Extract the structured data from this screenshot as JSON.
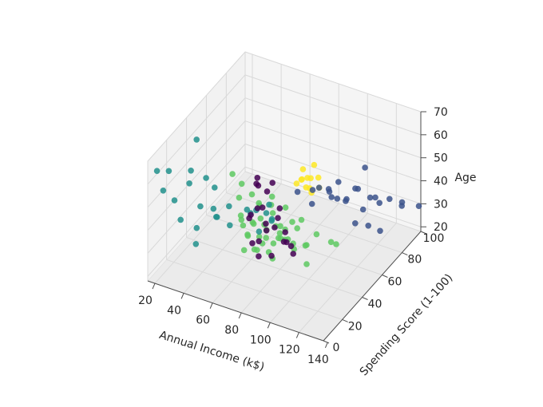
{
  "chart_data": {
    "type": "scatter",
    "projection": "3d",
    "xlabel": "Annual Income (k$)",
    "ylabel": "Spending Score (1-100)",
    "zlabel": "Age",
    "x_ticks": [
      "20",
      "40",
      "60",
      "80",
      "100",
      "120",
      "140"
    ],
    "y_ticks": [
      "0",
      "20",
      "40",
      "60",
      "80",
      "100"
    ],
    "z_ticks": [
      "20",
      "30",
      "40",
      "50",
      "60",
      "70"
    ],
    "xlim": [
      15,
      137
    ],
    "ylim": [
      1,
      99
    ],
    "zlim": [
      18,
      70
    ],
    "grid": true,
    "colors": {
      "cluster_purple": "#440154",
      "cluster_slate": "#3b528b",
      "cluster_teal": "#21918c",
      "cluster_green": "#5ec962",
      "cluster_yellow": "#fde725",
      "pane": "#f2f2f2",
      "grid": "#d9d9d9"
    },
    "clusters": [
      {
        "color": "#440154",
        "points": [
          [
            78,
            20,
            67
          ],
          [
            80,
            18,
            65
          ],
          [
            76,
            22,
            63
          ],
          [
            82,
            24,
            60
          ],
          [
            85,
            15,
            58
          ],
          [
            79,
            12,
            55
          ],
          [
            88,
            28,
            52
          ],
          [
            74,
            26,
            50
          ],
          [
            90,
            20,
            48
          ],
          [
            84,
            32,
            45
          ],
          [
            77,
            30,
            42
          ],
          [
            93,
            25,
            40
          ],
          [
            87,
            35,
            38
          ],
          [
            81,
            17,
            35
          ],
          [
            96,
            30,
            33
          ],
          [
            71,
            22,
            47
          ],
          [
            99,
            19,
            44
          ],
          [
            86,
            10,
            46
          ],
          [
            74,
            35,
            36
          ],
          [
            92,
            14,
            39
          ],
          [
            83,
            28,
            62
          ],
          [
            89,
            38,
            31
          ],
          [
            78,
            15,
            41
          ]
        ]
      },
      {
        "color": "#3b528b",
        "points": [
          [
            70,
            72,
            34
          ],
          [
            75,
            80,
            32
          ],
          [
            78,
            75,
            29
          ],
          [
            82,
            86,
            31
          ],
          [
            86,
            90,
            33
          ],
          [
            88,
            78,
            35
          ],
          [
            90,
            83,
            30
          ],
          [
            93,
            88,
            28
          ],
          [
            97,
            91,
            32
          ],
          [
            100,
            77,
            34
          ],
          [
            103,
            85,
            36
          ],
          [
            106,
            93,
            29
          ],
          [
            110,
            80,
            31
          ],
          [
            113,
            88,
            33
          ],
          [
            118,
            95,
            30
          ],
          [
            120,
            82,
            35
          ],
          [
            126,
            74,
            28
          ],
          [
            130,
            90,
            32
          ],
          [
            135,
            83,
            38
          ],
          [
            137,
            97,
            30
          ],
          [
            95,
            70,
            38
          ],
          [
            108,
            75,
            27
          ],
          [
            85,
            72,
            39
          ],
          [
            101,
            95,
            40
          ],
          [
            115,
            78,
            26
          ]
        ]
      },
      {
        "color": "#21918c",
        "points": [
          [
            18,
            6,
            64
          ],
          [
            20,
            15,
            60
          ],
          [
            22,
            40,
            62
          ],
          [
            23,
            5,
            57
          ],
          [
            25,
            30,
            54
          ],
          [
            26,
            12,
            50
          ],
          [
            28,
            24,
            52
          ],
          [
            30,
            38,
            48
          ],
          [
            33,
            8,
            45
          ],
          [
            35,
            25,
            43
          ],
          [
            38,
            35,
            47
          ],
          [
            40,
            14,
            40
          ],
          [
            42,
            28,
            42
          ],
          [
            45,
            6,
            38
          ],
          [
            48,
            35,
            41
          ],
          [
            50,
            20,
            44
          ],
          [
            52,
            30,
            36
          ],
          [
            55,
            12,
            49
          ],
          [
            57,
            40,
            39
          ],
          [
            60,
            45,
            37
          ],
          [
            62,
            55,
            35
          ],
          [
            54,
            48,
            33
          ],
          [
            66,
            52,
            31
          ],
          [
            58,
            58,
            29
          ],
          [
            64,
            42,
            30
          ],
          [
            70,
            46,
            34
          ]
        ]
      },
      {
        "color": "#5ec962",
        "points": [
          [
            40,
            50,
            46
          ],
          [
            43,
            55,
            40
          ],
          [
            46,
            48,
            38
          ],
          [
            48,
            58,
            35
          ],
          [
            50,
            44,
            33
          ],
          [
            52,
            60,
            30
          ],
          [
            54,
            50,
            28
          ],
          [
            56,
            42,
            27
          ],
          [
            58,
            56,
            25
          ],
          [
            60,
            48,
            24
          ],
          [
            62,
            52,
            22
          ],
          [
            64,
            40,
            23
          ],
          [
            66,
            60,
            21
          ],
          [
            68,
            46,
            20
          ],
          [
            70,
            55,
            22
          ],
          [
            72,
            50,
            25
          ],
          [
            74,
            42,
            27
          ],
          [
            76,
            58,
            29
          ],
          [
            78,
            48,
            31
          ],
          [
            80,
            54,
            20
          ],
          [
            63,
            45,
            34
          ],
          [
            57,
            52,
            36
          ],
          [
            49,
            46,
            30
          ],
          [
            66,
            56,
            26
          ],
          [
            72,
            44,
            19
          ],
          [
            60,
            60,
            32
          ],
          [
            55,
            40,
            21
          ],
          [
            68,
            50,
            35
          ],
          [
            75,
            52,
            24
          ],
          [
            82,
            45,
            29
          ],
          [
            70,
            60,
            33
          ],
          [
            58,
            46,
            19
          ],
          [
            52,
            54,
            25
          ],
          [
            65,
            48,
            28
          ],
          [
            78,
            56,
            21
          ],
          [
            85,
            50,
            32
          ],
          [
            62,
            58,
            37
          ],
          [
            46,
            52,
            24
          ],
          [
            88,
            55,
            23
          ],
          [
            92,
            48,
            27
          ],
          [
            97,
            52,
            31
          ],
          [
            103,
            58,
            26
          ],
          [
            110,
            53,
            29
          ],
          [
            76,
            46,
            33
          ],
          [
            67,
            41,
            26
          ],
          [
            81,
            60,
            30
          ],
          [
            95,
            45,
            21
          ],
          [
            59,
            38,
            29
          ]
        ]
      },
      {
        "color": "#fde725",
        "points": [
          [
            60,
            92,
            32
          ],
          [
            62,
            88,
            30
          ],
          [
            64,
            94,
            28
          ],
          [
            66,
            90,
            26
          ],
          [
            63,
            86,
            31
          ],
          [
            61,
            95,
            27
          ],
          [
            67,
            85,
            29
          ],
          [
            65,
            96,
            33
          ],
          [
            68,
            89,
            25
          ],
          [
            70,
            93,
            30
          ],
          [
            59,
            87,
            28
          ],
          [
            72,
            91,
            27
          ]
        ]
      }
    ]
  }
}
